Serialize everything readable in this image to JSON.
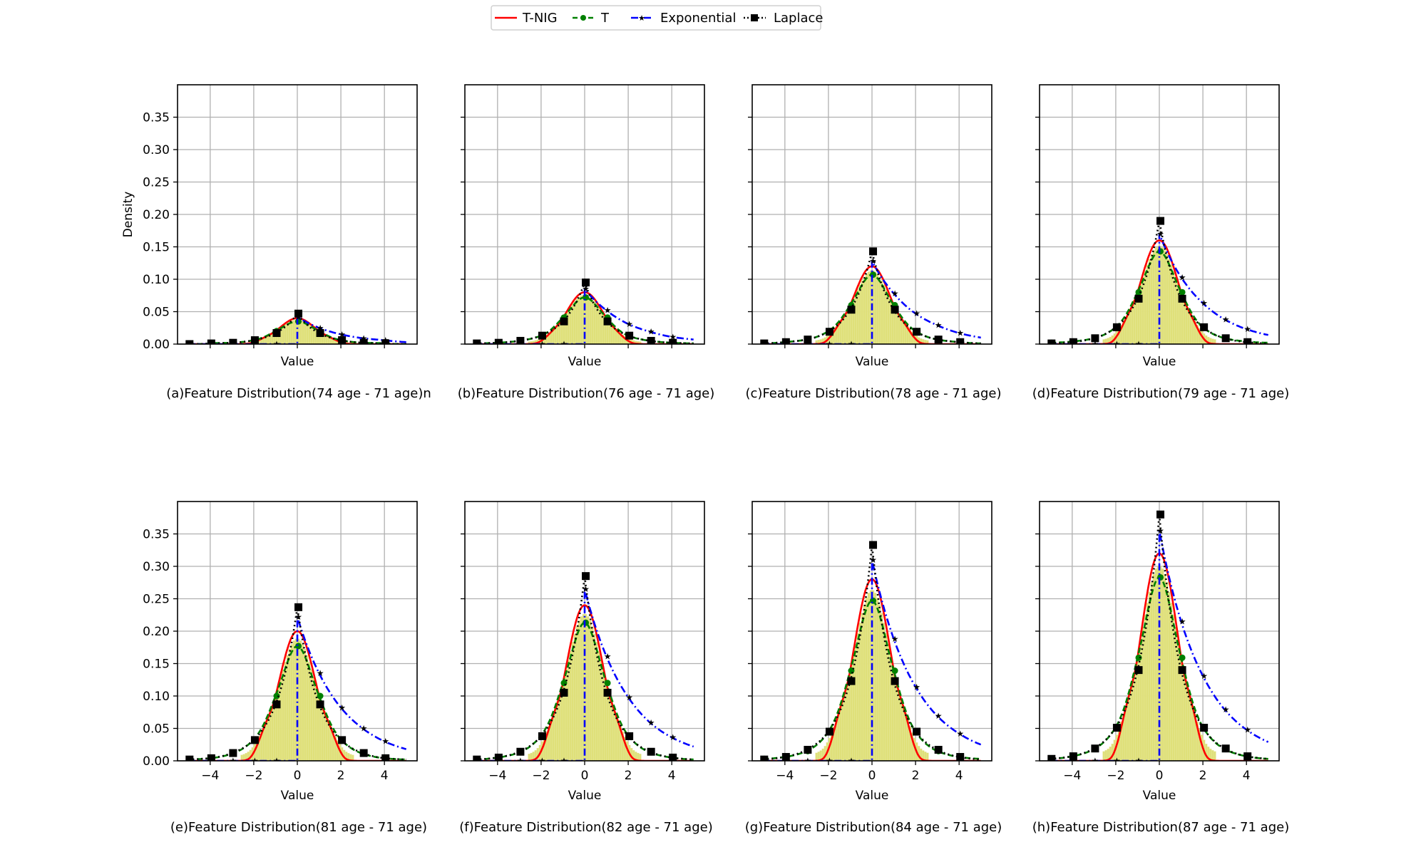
{
  "legend": {
    "placement": "top-center",
    "entries": [
      {
        "label": "T-NIG",
        "color": "#ff0000",
        "style": "solid",
        "marker": "none"
      },
      {
        "label": "T",
        "color": "#008000",
        "style": "dashed",
        "marker": "circle"
      },
      {
        "label": "Exponential",
        "color": "#0000ff",
        "style": "dash-dot",
        "marker": "star"
      },
      {
        "label": "Laplace",
        "color": "#000000",
        "style": "dotted",
        "marker": "square"
      }
    ]
  },
  "chart_data": {
    "type": "line",
    "histogram_color": "#dfe07a",
    "grid": true,
    "xlabel": "Value",
    "ylabel": "Density",
    "xlim": [
      -5.5,
      5.5
    ],
    "ylim": [
      0,
      0.4
    ],
    "xticks": [
      "−4",
      "−2",
      "0",
      "2",
      "4"
    ],
    "xtick_values": [
      -4,
      -2,
      0,
      2,
      4
    ],
    "yticks": [
      "0.00",
      "0.05",
      "0.10",
      "0.15",
      "0.20",
      "0.25",
      "0.30",
      "0.35"
    ],
    "ytick_values": [
      0,
      0.05,
      0.1,
      0.15,
      0.2,
      0.25,
      0.3,
      0.35
    ],
    "x": [
      -5,
      -4,
      -3,
      -2,
      -1,
      0,
      1,
      2,
      3,
      4,
      5
    ],
    "panels": [
      {
        "title": "(a)Feature Distribution(74 age - 71 age)n",
        "series": [
          {
            "name": "T-NIG",
            "values": [
              0,
              0,
              0,
              0.003,
              0.02,
              0.04,
              0.02,
              0.003,
              0,
              0,
              0
            ]
          },
          {
            "name": "T",
            "values": [
              0,
              0.001,
              0.002,
              0.006,
              0.02,
              0.035,
              0.02,
              0.006,
              0.002,
              0.001,
              0
            ]
          },
          {
            "name": "Exponential",
            "values": [
              0,
              0,
              0,
              0,
              0,
              0.042,
              0.025,
              0.015,
              0.009,
              0.006,
              0.003
            ]
          },
          {
            "name": "Laplace",
            "values": [
              0,
              0.001,
              0.002,
              0.006,
              0.017,
              0.047,
              0.017,
              0.006,
              0.002,
              0.001,
              0
            ]
          }
        ]
      },
      {
        "title": "(b)Feature Distribution(76 age - 71 age)",
        "series": [
          {
            "name": "T-NIG",
            "values": [
              0,
              0,
              0,
              0.005,
              0.04,
              0.08,
              0.04,
              0.005,
              0,
              0,
              0
            ]
          },
          {
            "name": "T",
            "values": [
              0.001,
              0.002,
              0.005,
              0.013,
              0.041,
              0.072,
              0.041,
              0.013,
              0.005,
              0.002,
              0.001
            ]
          },
          {
            "name": "Exponential",
            "values": [
              0,
              0,
              0,
              0,
              0,
              0.085,
              0.052,
              0.031,
              0.019,
              0.011,
              0.007
            ]
          },
          {
            "name": "Laplace",
            "values": [
              0.001,
              0.002,
              0.005,
              0.013,
              0.035,
              0.095,
              0.035,
              0.013,
              0.005,
              0.002,
              0.001
            ]
          }
        ]
      },
      {
        "title": "(c)Feature Distribution(78 age - 71 age)",
        "series": [
          {
            "name": "T-NIG",
            "values": [
              0,
              0,
              0,
              0.008,
              0.06,
              0.12,
              0.06,
              0.008,
              0,
              0,
              0
            ]
          },
          {
            "name": "T",
            "values": [
              0.001,
              0.003,
              0.007,
              0.02,
              0.06,
              0.107,
              0.06,
              0.02,
              0.007,
              0.003,
              0.001
            ]
          },
          {
            "name": "Exponential",
            "values": [
              0,
              0,
              0,
              0,
              0,
              0.128,
              0.078,
              0.047,
              0.029,
              0.017,
              0.01
            ]
          },
          {
            "name": "Laplace",
            "values": [
              0.001,
              0.003,
              0.007,
              0.019,
              0.053,
              0.143,
              0.053,
              0.019,
              0.007,
              0.003,
              0.001
            ]
          }
        ]
      },
      {
        "title": "(d)Feature Distribution(79 age - 71 age)",
        "series": [
          {
            "name": "T-NIG",
            "values": [
              0,
              0,
              0,
              0.01,
              0.08,
              0.16,
              0.08,
              0.01,
              0,
              0,
              0
            ]
          },
          {
            "name": "T",
            "values": [
              0.002,
              0.004,
              0.009,
              0.026,
              0.08,
              0.143,
              0.08,
              0.026,
              0.009,
              0.004,
              0.002
            ]
          },
          {
            "name": "Exponential",
            "values": [
              0,
              0,
              0,
              0,
              0,
              0.17,
              0.103,
              0.063,
              0.038,
              0.023,
              0.014
            ]
          },
          {
            "name": "Laplace",
            "values": [
              0.001,
              0.003,
              0.009,
              0.026,
              0.07,
              0.19,
              0.07,
              0.026,
              0.009,
              0.003,
              0.001
            ]
          }
        ]
      },
      {
        "title": "(e)Feature Distribution(81 age - 71 age)",
        "series": [
          {
            "name": "T-NIG",
            "values": [
              0,
              0,
              0,
              0.013,
              0.1,
              0.2,
              0.1,
              0.013,
              0,
              0,
              0
            ]
          },
          {
            "name": "T",
            "values": [
              0.002,
              0.004,
              0.011,
              0.033,
              0.1,
              0.177,
              0.1,
              0.033,
              0.011,
              0.004,
              0.002
            ]
          },
          {
            "name": "Exponential",
            "values": [
              0,
              0,
              0,
              0,
              0,
              0.222,
              0.135,
              0.082,
              0.05,
              0.03,
              0.018
            ]
          },
          {
            "name": "Laplace",
            "values": [
              0.002,
              0.004,
              0.012,
              0.032,
              0.087,
              0.237,
              0.087,
              0.032,
              0.012,
              0.004,
              0.002
            ]
          }
        ]
      },
      {
        "title": "(f)Feature Distribution(82 age - 71 age)",
        "series": [
          {
            "name": "T-NIG",
            "values": [
              0,
              0,
              0,
              0.015,
              0.12,
              0.24,
              0.12,
              0.015,
              0,
              0,
              0
            ]
          },
          {
            "name": "T",
            "values": [
              0.002,
              0.005,
              0.013,
              0.039,
              0.12,
              0.213,
              0.12,
              0.039,
              0.013,
              0.005,
              0.002
            ]
          },
          {
            "name": "Exponential",
            "values": [
              0,
              0,
              0,
              0,
              0,
              0.265,
              0.161,
              0.098,
              0.059,
              0.036,
              0.022
            ]
          },
          {
            "name": "Laplace",
            "values": [
              0.002,
              0.005,
              0.014,
              0.038,
              0.105,
              0.285,
              0.105,
              0.038,
              0.014,
              0.005,
              0.002
            ]
          }
        ]
      },
      {
        "title": "(g)Feature Distribution(84 age - 71 age)",
        "series": [
          {
            "name": "T-NIG",
            "values": [
              0,
              0,
              0,
              0.018,
              0.14,
              0.28,
              0.14,
              0.018,
              0,
              0,
              0
            ]
          },
          {
            "name": "T",
            "values": [
              0.003,
              0.006,
              0.015,
              0.045,
              0.139,
              0.247,
              0.139,
              0.045,
              0.015,
              0.006,
              0.003
            ]
          },
          {
            "name": "Exponential",
            "values": [
              0,
              0,
              0,
              0,
              0,
              0.31,
              0.188,
              0.114,
              0.069,
              0.042,
              0.025
            ]
          },
          {
            "name": "Laplace",
            "values": [
              0.002,
              0.006,
              0.017,
              0.045,
              0.123,
              0.333,
              0.123,
              0.045,
              0.017,
              0.006,
              0.002
            ]
          }
        ]
      },
      {
        "title": "(h)Feature Distribution(87 age - 71 age)",
        "series": [
          {
            "name": "T-NIG",
            "values": [
              0,
              0,
              0,
              0.02,
              0.16,
              0.32,
              0.16,
              0.02,
              0,
              0,
              0
            ]
          },
          {
            "name": "T",
            "values": [
              0.003,
              0.007,
              0.018,
              0.052,
              0.159,
              0.283,
              0.159,
              0.052,
              0.018,
              0.007,
              0.003
            ]
          },
          {
            "name": "Exponential",
            "values": [
              0,
              0,
              0,
              0,
              0,
              0.355,
              0.215,
              0.131,
              0.079,
              0.048,
              0.029
            ]
          },
          {
            "name": "Laplace",
            "values": [
              0.003,
              0.007,
              0.019,
              0.051,
              0.14,
              0.38,
              0.14,
              0.051,
              0.019,
              0.007,
              0.003
            ]
          }
        ]
      }
    ]
  }
}
